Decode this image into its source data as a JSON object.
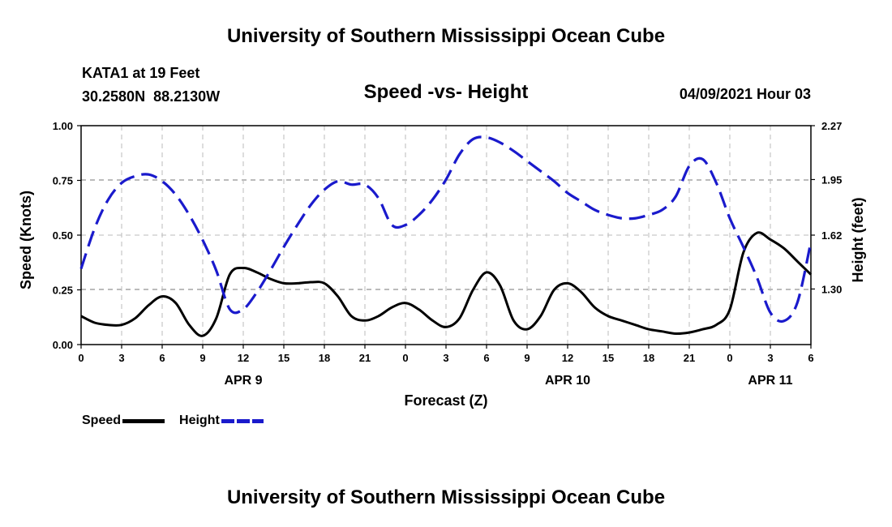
{
  "header": {
    "title": "University of Southern Mississippi Ocean Cube",
    "station_name": "KATA1 at 19 Feet",
    "coordinates": "30.2580N  88.2130W",
    "subtitle": "Speed -vs- Height",
    "timestamp": "04/09/2021 Hour 03",
    "footer_title": "University of Southern Mississippi Ocean Cube"
  },
  "legend": {
    "speed_label": "Speed",
    "height_label": "Height"
  },
  "colors": {
    "speed": "#000000",
    "height": "#1a1acc",
    "grid": "#bbbbbb"
  },
  "chart_data": {
    "type": "line",
    "title": "Speed -vs- Height",
    "xlabel": "Forecast (Z)",
    "ylabel": "Speed (Knots)",
    "ylabel_right": "Height (feet)",
    "xlim": [
      0,
      54
    ],
    "ylim": [
      0,
      1
    ],
    "ylim_right": [
      0.97,
      2.27
    ],
    "x_ticks": [
      0,
      3,
      6,
      9,
      12,
      15,
      18,
      21,
      24,
      27,
      30,
      33,
      36,
      39,
      42,
      45,
      48,
      51,
      54
    ],
    "x_tick_labels": [
      "0",
      "3",
      "6",
      "9",
      "12",
      "15",
      "18",
      "21",
      "0",
      "3",
      "6",
      "9",
      "12",
      "15",
      "18",
      "21",
      "0",
      "3",
      "6"
    ],
    "y_ticks": [
      0,
      0.25,
      0.5,
      0.75,
      1.0
    ],
    "y_tick_labels": [
      "0.00",
      "0.25",
      "0.50",
      "0.75",
      "1.00"
    ],
    "y_ticks_right": [
      1.3,
      1.62,
      1.95,
      2.27
    ],
    "y_tick_labels_right": [
      "1.30",
      "1.62",
      "1.95",
      "2.27"
    ],
    "date_labels": [
      {
        "x": 12,
        "label": "APR 9"
      },
      {
        "x": 36,
        "label": "APR 10"
      },
      {
        "x": 51,
        "label": "APR 11"
      }
    ],
    "grid": true,
    "series": [
      {
        "name": "Speed",
        "axis": "left",
        "style": "solid",
        "x": [
          0,
          1,
          2,
          3,
          4,
          5,
          6,
          7,
          8,
          9,
          10,
          11,
          12,
          13,
          14,
          15,
          16,
          17,
          18,
          19,
          20,
          21,
          22,
          23,
          24,
          25,
          26,
          27,
          28,
          29,
          30,
          31,
          32,
          33,
          34,
          35,
          36,
          37,
          38,
          39,
          40,
          41,
          42,
          43,
          44,
          45,
          46,
          47,
          48,
          49,
          50,
          51,
          52,
          53,
          54
        ],
        "values": [
          0.13,
          0.1,
          0.09,
          0.09,
          0.12,
          0.18,
          0.22,
          0.19,
          0.09,
          0.04,
          0.12,
          0.32,
          0.35,
          0.33,
          0.3,
          0.28,
          0.28,
          0.285,
          0.28,
          0.22,
          0.13,
          0.11,
          0.13,
          0.17,
          0.19,
          0.16,
          0.11,
          0.08,
          0.12,
          0.25,
          0.33,
          0.27,
          0.11,
          0.07,
          0.13,
          0.25,
          0.28,
          0.24,
          0.17,
          0.13,
          0.11,
          0.09,
          0.07,
          0.06,
          0.05,
          0.055,
          0.07,
          0.09,
          0.16,
          0.42,
          0.51,
          0.48,
          0.44,
          0.38,
          0.32
        ]
      },
      {
        "name": "Height",
        "axis": "right",
        "style": "dashed",
        "x": [
          0,
          1,
          2,
          3,
          4,
          5,
          6,
          7,
          8,
          9,
          10,
          11,
          12,
          13,
          14,
          15,
          16,
          17,
          18,
          19,
          20,
          21,
          22,
          23,
          24,
          25,
          26,
          27,
          28,
          29,
          30,
          31,
          32,
          33,
          34,
          35,
          36,
          37,
          38,
          39,
          40,
          41,
          42,
          43,
          44,
          45,
          46,
          47,
          48,
          49,
          50,
          51,
          52,
          53,
          54
        ],
        "values": [
          1.42,
          1.66,
          1.83,
          1.93,
          1.97,
          1.98,
          1.94,
          1.86,
          1.74,
          1.59,
          1.41,
          1.18,
          1.18,
          1.28,
          1.41,
          1.55,
          1.68,
          1.8,
          1.89,
          1.94,
          1.92,
          1.92,
          1.84,
          1.68,
          1.68,
          1.74,
          1.83,
          1.95,
          2.1,
          2.19,
          2.2,
          2.17,
          2.12,
          2.06,
          2.0,
          1.94,
          1.87,
          1.82,
          1.77,
          1.74,
          1.72,
          1.72,
          1.74,
          1.77,
          1.85,
          2.03,
          2.07,
          1.93,
          1.72,
          1.55,
          1.37,
          1.16,
          1.11,
          1.22,
          1.58
        ]
      }
    ]
  }
}
